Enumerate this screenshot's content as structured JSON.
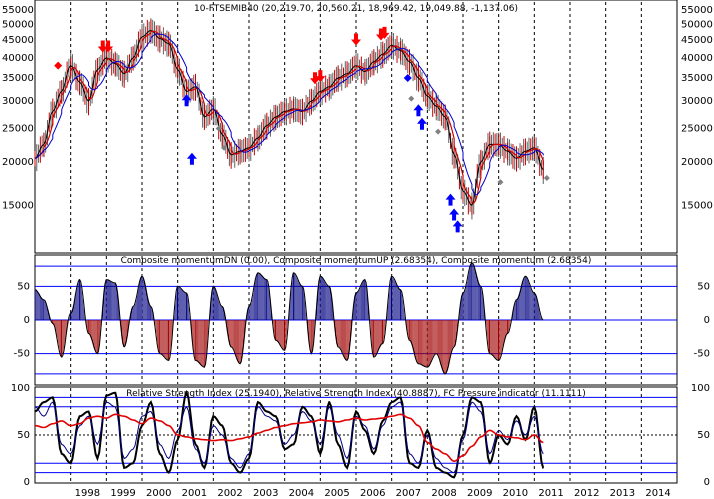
{
  "chart_data": [
    {
      "type": "line",
      "title": "10-FTSEMIB40 (20,219.70, 20,560.21, 18,969.42, 19,049.88, -1,137.06)",
      "scale": "log",
      "ylim": [
        11000,
        58000
      ],
      "yticks": [
        15000,
        20000,
        25000,
        30000,
        35000,
        40000,
        45000,
        50000,
        55000
      ],
      "ytick_labels": [
        "15000",
        "20000",
        "25000",
        "30000",
        "35000",
        "40000",
        "45000",
        "50000",
        "55000"
      ],
      "xlim": [
        1997.0,
        2015.0
      ],
      "grid": true,
      "series": [
        {
          "color": "#000000",
          "x": [
            1997.0,
            1997.25,
            1997.5,
            1997.75,
            1998.0,
            1998.25,
            1998.5,
            1998.75,
            1999.0,
            1999.25,
            1999.5,
            1999.75,
            2000.0,
            2000.25,
            2000.5,
            2000.75,
            2001.0,
            2001.25,
            2001.5,
            2001.75,
            2002.0,
            2002.25,
            2002.5,
            2002.75,
            2003.0,
            2003.25,
            2003.5,
            2003.75,
            2004.0,
            2004.25,
            2004.5,
            2004.75,
            2005.0,
            2005.25,
            2005.5,
            2005.75,
            2006.0,
            2006.25,
            2006.5,
            2006.75,
            2007.0,
            2007.25,
            2007.5,
            2007.75,
            2008.0,
            2008.25,
            2008.5,
            2008.75,
            2009.0,
            2009.25,
            2009.5,
            2009.75,
            2010.0,
            2010.25,
            2010.5,
            2010.75,
            2011.0,
            2011.25
          ],
          "values": [
            20500,
            22500,
            28000,
            32000,
            38000,
            34000,
            30000,
            37000,
            40000,
            38500,
            36000,
            40000,
            46000,
            48000,
            45500,
            44000,
            37000,
            32000,
            33000,
            27000,
            28500,
            24000,
            21000,
            21500,
            22000,
            23500,
            25500,
            27000,
            28000,
            28500,
            28000,
            30000,
            32000,
            33000,
            35000,
            36000,
            38000,
            36500,
            39000,
            41000,
            43500,
            42000,
            39000,
            35000,
            31000,
            29000,
            27000,
            21000,
            16500,
            15000,
            20000,
            22500,
            22500,
            21500,
            20500,
            21500,
            22000,
            19000
          ]
        }
      ],
      "markers": [
        {
          "shape": "diamond",
          "color": "#ff0000",
          "x": 1997.65,
          "y": 38000
        },
        {
          "shape": "arrow-down",
          "color": "#ff0000",
          "x": 1998.9,
          "y": 42000
        },
        {
          "shape": "arrow-down",
          "color": "#ff0000",
          "x": 1999.05,
          "y": 42000
        },
        {
          "shape": "arrow-up",
          "color": "#0000ff",
          "x": 2001.25,
          "y": 31000
        },
        {
          "shape": "arrow-up",
          "color": "#0000ff",
          "x": 2001.4,
          "y": 21000
        },
        {
          "shape": "diamond",
          "color": "#808080",
          "x": 2002.15,
          "y": 25000
        },
        {
          "shape": "diamond",
          "color": "#808080",
          "x": 2002.3,
          "y": 22000
        },
        {
          "shape": "arrow-down",
          "color": "#ff0000",
          "x": 2004.85,
          "y": 34000
        },
        {
          "shape": "arrow-down",
          "color": "#ff0000",
          "x": 2005.0,
          "y": 34500
        },
        {
          "shape": "arrow-down",
          "color": "#ff0000",
          "x": 2006.0,
          "y": 44000
        },
        {
          "shape": "arrow-down",
          "color": "#ff0000",
          "x": 2006.7,
          "y": 45500
        },
        {
          "shape": "arrow-down",
          "color": "#ff0000",
          "x": 2006.8,
          "y": 46000
        },
        {
          "shape": "diamond",
          "color": "#0000ff",
          "x": 2007.45,
          "y": 35000
        },
        {
          "shape": "arrow-up",
          "color": "#0000ff",
          "x": 2007.75,
          "y": 29000
        },
        {
          "shape": "arrow-up",
          "color": "#0000ff",
          "x": 2007.85,
          "y": 26500
        },
        {
          "shape": "diamond",
          "color": "#808080",
          "x": 2007.55,
          "y": 30500
        },
        {
          "shape": "diamond",
          "color": "#808080",
          "x": 2008.3,
          "y": 24500
        },
        {
          "shape": "arrow-up",
          "color": "#0000ff",
          "x": 2008.65,
          "y": 16000
        },
        {
          "shape": "arrow-up",
          "color": "#0000ff",
          "x": 2008.75,
          "y": 14500
        },
        {
          "shape": "arrow-up",
          "color": "#0000ff",
          "x": 2008.85,
          "y": 13400
        },
        {
          "shape": "diamond",
          "color": "#808080",
          "x": 2010.05,
          "y": 17500
        },
        {
          "shape": "diamond",
          "color": "#808080",
          "x": 2011.35,
          "y": 18000
        }
      ]
    },
    {
      "type": "bar",
      "title": "Composite momentumDN (0.00), Composite momentumUP (2.68354), Composite momentum (2.68354)",
      "ylim": [
        -95,
        95
      ],
      "yticks": [
        -50,
        0,
        50
      ],
      "ytick_labels": [
        "-50",
        "0",
        "50"
      ],
      "hlines": [
        -80,
        -50,
        0,
        50,
        80
      ],
      "xlim": [
        1997.0,
        2015.0
      ],
      "series": [
        {
          "color": "#000000",
          "x": [
            1997.0,
            1997.25,
            1997.5,
            1997.75,
            1998.0,
            1998.25,
            1998.5,
            1998.75,
            1999.0,
            1999.25,
            1999.5,
            1999.75,
            2000.0,
            2000.25,
            2000.5,
            2000.75,
            2001.0,
            2001.25,
            2001.5,
            2001.75,
            2002.0,
            2002.25,
            2002.5,
            2002.75,
            2003.0,
            2003.25,
            2003.5,
            2003.75,
            2004.0,
            2004.25,
            2004.5,
            2004.75,
            2005.0,
            2005.25,
            2005.5,
            2005.75,
            2006.0,
            2006.25,
            2006.5,
            2006.75,
            2007.0,
            2007.25,
            2007.5,
            2007.75,
            2008.0,
            2008.25,
            2008.5,
            2008.75,
            2009.0,
            2009.25,
            2009.5,
            2009.75,
            2010.0,
            2010.25,
            2010.5,
            2010.75,
            2011.0,
            2011.25
          ],
          "values": [
            45,
            30,
            -5,
            -55,
            10,
            60,
            -20,
            -50,
            60,
            55,
            -40,
            20,
            65,
            20,
            -50,
            -60,
            50,
            40,
            -60,
            -70,
            50,
            20,
            -40,
            -65,
            20,
            70,
            60,
            -30,
            -45,
            70,
            50,
            -50,
            65,
            50,
            -40,
            -60,
            40,
            60,
            -55,
            -35,
            65,
            45,
            -30,
            -65,
            -70,
            -50,
            -80,
            -40,
            40,
            85,
            50,
            -50,
            -60,
            -20,
            30,
            65,
            40,
            0
          ]
        }
      ]
    },
    {
      "type": "line",
      "title": "Relative Strength Index (25.1940), Relative Strength Index (40.8887), FC Pressure indicator (11.1111)",
      "ylim": [
        0,
        100
      ],
      "yticks": [
        0,
        50,
        100
      ],
      "ytick_labels": [
        "0",
        "50",
        "100"
      ],
      "hlines": [
        10,
        20,
        50,
        80,
        90
      ],
      "xlim": [
        1997.0,
        2015.0
      ],
      "xticks": [
        1998,
        1999,
        2000,
        2001,
        2002,
        2003,
        2004,
        2005,
        2006,
        2007,
        2008,
        2009,
        2010,
        2011,
        2012,
        2013,
        2014
      ],
      "xtick_labels": [
        "1998",
        "1999",
        "2000",
        "2001",
        "2002",
        "2003",
        "2004",
        "2005",
        "2006",
        "2007",
        "2008",
        "2009",
        "2010",
        "2011",
        "2012",
        "2013",
        "2014"
      ],
      "series": [
        {
          "color": "#000000",
          "x": [
            1997.0,
            1997.25,
            1997.5,
            1997.75,
            1998.0,
            1998.25,
            1998.5,
            1998.75,
            1999.0,
            1999.25,
            1999.5,
            1999.75,
            2000.0,
            2000.25,
            2000.5,
            2000.75,
            2001.0,
            2001.25,
            2001.5,
            2001.75,
            2002.0,
            2002.25,
            2002.5,
            2002.75,
            2003.0,
            2003.25,
            2003.5,
            2003.75,
            2004.0,
            2004.25,
            2004.5,
            2004.75,
            2005.0,
            2005.25,
            2005.5,
            2005.75,
            2006.0,
            2006.25,
            2006.5,
            2006.75,
            2007.0,
            2007.25,
            2007.5,
            2007.75,
            2008.0,
            2008.25,
            2008.5,
            2008.75,
            2009.0,
            2009.25,
            2009.5,
            2009.75,
            2010.0,
            2010.25,
            2010.5,
            2010.75,
            2011.0,
            2011.25
          ],
          "values": [
            75,
            85,
            90,
            30,
            20,
            70,
            75,
            25,
            92,
            95,
            15,
            20,
            60,
            85,
            30,
            10,
            45,
            95,
            40,
            15,
            70,
            60,
            20,
            10,
            25,
            85,
            75,
            70,
            35,
            40,
            80,
            70,
            30,
            85,
            40,
            15,
            75,
            55,
            30,
            65,
            85,
            90,
            20,
            15,
            55,
            15,
            10,
            5,
            50,
            90,
            85,
            20,
            50,
            40,
            70,
            45,
            80,
            15
          ]
        },
        {
          "color": "#000080",
          "x": [
            1997.0,
            1997.25,
            1997.5,
            1997.75,
            1998.0,
            1998.25,
            1998.5,
            1998.75,
            1999.0,
            1999.25,
            1999.5,
            1999.75,
            2000.0,
            2000.25,
            2000.5,
            2000.75,
            2001.0,
            2001.25,
            2001.5,
            2001.75,
            2002.0,
            2002.25,
            2002.5,
            2002.75,
            2003.0,
            2003.25,
            2003.5,
            2003.75,
            2004.0,
            2004.25,
            2004.5,
            2004.75,
            2005.0,
            2005.25,
            2005.5,
            2005.75,
            2006.0,
            2006.25,
            2006.5,
            2006.75,
            2007.0,
            2007.25,
            2007.5,
            2007.75,
            2008.0,
            2008.25,
            2008.5,
            2008.75,
            2009.0,
            2009.25,
            2009.5,
            2009.75,
            2010.0,
            2010.25,
            2010.5,
            2010.75,
            2011.0,
            2011.25
          ],
          "values": [
            80,
            70,
            85,
            40,
            30,
            60,
            70,
            40,
            85,
            80,
            25,
            35,
            70,
            75,
            40,
            25,
            55,
            80,
            35,
            20,
            60,
            50,
            25,
            15,
            30,
            80,
            70,
            65,
            40,
            50,
            75,
            65,
            40,
            80,
            50,
            25,
            70,
            60,
            35,
            60,
            80,
            85,
            30,
            20,
            50,
            25,
            15,
            10,
            45,
            85,
            75,
            30,
            55,
            45,
            65,
            50,
            70,
            30
          ]
        },
        {
          "color": "#e00000",
          "x": [
            1997.0,
            1997.25,
            1997.5,
            1997.75,
            1998.0,
            1998.25,
            1998.5,
            1998.75,
            1999.0,
            1999.25,
            1999.5,
            1999.75,
            2000.0,
            2000.25,
            2000.5,
            2000.75,
            2001.0,
            2001.25,
            2001.5,
            2001.75,
            2002.0,
            2002.25,
            2002.5,
            2002.75,
            2003.0,
            2003.25,
            2003.5,
            2003.75,
            2004.0,
            2004.25,
            2004.5,
            2004.75,
            2005.0,
            2005.25,
            2005.5,
            2005.75,
            2006.0,
            2006.25,
            2006.5,
            2006.75,
            2007.0,
            2007.25,
            2007.5,
            2007.75,
            2008.0,
            2008.25,
            2008.5,
            2008.75,
            2009.0,
            2009.25,
            2009.5,
            2009.75,
            2010.0,
            2010.25,
            2010.5,
            2010.75,
            2011.0,
            2011.25
          ],
          "values": [
            60,
            58,
            62,
            65,
            60,
            62,
            68,
            70,
            68,
            72,
            70,
            66,
            62,
            68,
            65,
            60,
            50,
            48,
            46,
            45,
            44,
            45,
            44,
            46,
            48,
            52,
            55,
            58,
            60,
            62,
            63,
            64,
            66,
            65,
            64,
            66,
            68,
            66,
            67,
            68,
            70,
            72,
            68,
            60,
            42,
            35,
            30,
            22,
            28,
            38,
            48,
            55,
            50,
            48,
            47,
            45,
            50,
            42
          ]
        }
      ]
    }
  ]
}
